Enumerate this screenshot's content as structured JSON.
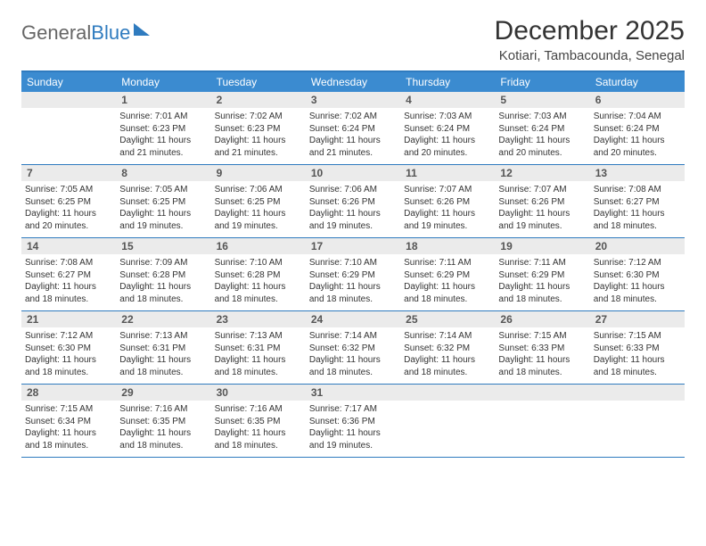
{
  "logo": {
    "word1": "General",
    "word2": "Blue"
  },
  "title": "December 2025",
  "location": "Kotiari, Tambacounda, Senegal",
  "day_names": [
    "Sunday",
    "Monday",
    "Tuesday",
    "Wednesday",
    "Thursday",
    "Friday",
    "Saturday"
  ],
  "colors": {
    "header_bg": "#3b8bd0",
    "border": "#2f7bbf",
    "daynum_bg": "#ebebeb",
    "text": "#333333"
  },
  "weeks": [
    [
      {
        "day": "",
        "sunrise": "",
        "sunset": "",
        "daylight": ""
      },
      {
        "day": "1",
        "sunrise": "Sunrise: 7:01 AM",
        "sunset": "Sunset: 6:23 PM",
        "daylight": "Daylight: 11 hours and 21 minutes."
      },
      {
        "day": "2",
        "sunrise": "Sunrise: 7:02 AM",
        "sunset": "Sunset: 6:23 PM",
        "daylight": "Daylight: 11 hours and 21 minutes."
      },
      {
        "day": "3",
        "sunrise": "Sunrise: 7:02 AM",
        "sunset": "Sunset: 6:24 PM",
        "daylight": "Daylight: 11 hours and 21 minutes."
      },
      {
        "day": "4",
        "sunrise": "Sunrise: 7:03 AM",
        "sunset": "Sunset: 6:24 PM",
        "daylight": "Daylight: 11 hours and 20 minutes."
      },
      {
        "day": "5",
        "sunrise": "Sunrise: 7:03 AM",
        "sunset": "Sunset: 6:24 PM",
        "daylight": "Daylight: 11 hours and 20 minutes."
      },
      {
        "day": "6",
        "sunrise": "Sunrise: 7:04 AM",
        "sunset": "Sunset: 6:24 PM",
        "daylight": "Daylight: 11 hours and 20 minutes."
      }
    ],
    [
      {
        "day": "7",
        "sunrise": "Sunrise: 7:05 AM",
        "sunset": "Sunset: 6:25 PM",
        "daylight": "Daylight: 11 hours and 20 minutes."
      },
      {
        "day": "8",
        "sunrise": "Sunrise: 7:05 AM",
        "sunset": "Sunset: 6:25 PM",
        "daylight": "Daylight: 11 hours and 19 minutes."
      },
      {
        "day": "9",
        "sunrise": "Sunrise: 7:06 AM",
        "sunset": "Sunset: 6:25 PM",
        "daylight": "Daylight: 11 hours and 19 minutes."
      },
      {
        "day": "10",
        "sunrise": "Sunrise: 7:06 AM",
        "sunset": "Sunset: 6:26 PM",
        "daylight": "Daylight: 11 hours and 19 minutes."
      },
      {
        "day": "11",
        "sunrise": "Sunrise: 7:07 AM",
        "sunset": "Sunset: 6:26 PM",
        "daylight": "Daylight: 11 hours and 19 minutes."
      },
      {
        "day": "12",
        "sunrise": "Sunrise: 7:07 AM",
        "sunset": "Sunset: 6:26 PM",
        "daylight": "Daylight: 11 hours and 19 minutes."
      },
      {
        "day": "13",
        "sunrise": "Sunrise: 7:08 AM",
        "sunset": "Sunset: 6:27 PM",
        "daylight": "Daylight: 11 hours and 18 minutes."
      }
    ],
    [
      {
        "day": "14",
        "sunrise": "Sunrise: 7:08 AM",
        "sunset": "Sunset: 6:27 PM",
        "daylight": "Daylight: 11 hours and 18 minutes."
      },
      {
        "day": "15",
        "sunrise": "Sunrise: 7:09 AM",
        "sunset": "Sunset: 6:28 PM",
        "daylight": "Daylight: 11 hours and 18 minutes."
      },
      {
        "day": "16",
        "sunrise": "Sunrise: 7:10 AM",
        "sunset": "Sunset: 6:28 PM",
        "daylight": "Daylight: 11 hours and 18 minutes."
      },
      {
        "day": "17",
        "sunrise": "Sunrise: 7:10 AM",
        "sunset": "Sunset: 6:29 PM",
        "daylight": "Daylight: 11 hours and 18 minutes."
      },
      {
        "day": "18",
        "sunrise": "Sunrise: 7:11 AM",
        "sunset": "Sunset: 6:29 PM",
        "daylight": "Daylight: 11 hours and 18 minutes."
      },
      {
        "day": "19",
        "sunrise": "Sunrise: 7:11 AM",
        "sunset": "Sunset: 6:29 PM",
        "daylight": "Daylight: 11 hours and 18 minutes."
      },
      {
        "day": "20",
        "sunrise": "Sunrise: 7:12 AM",
        "sunset": "Sunset: 6:30 PM",
        "daylight": "Daylight: 11 hours and 18 minutes."
      }
    ],
    [
      {
        "day": "21",
        "sunrise": "Sunrise: 7:12 AM",
        "sunset": "Sunset: 6:30 PM",
        "daylight": "Daylight: 11 hours and 18 minutes."
      },
      {
        "day": "22",
        "sunrise": "Sunrise: 7:13 AM",
        "sunset": "Sunset: 6:31 PM",
        "daylight": "Daylight: 11 hours and 18 minutes."
      },
      {
        "day": "23",
        "sunrise": "Sunrise: 7:13 AM",
        "sunset": "Sunset: 6:31 PM",
        "daylight": "Daylight: 11 hours and 18 minutes."
      },
      {
        "day": "24",
        "sunrise": "Sunrise: 7:14 AM",
        "sunset": "Sunset: 6:32 PM",
        "daylight": "Daylight: 11 hours and 18 minutes."
      },
      {
        "day": "25",
        "sunrise": "Sunrise: 7:14 AM",
        "sunset": "Sunset: 6:32 PM",
        "daylight": "Daylight: 11 hours and 18 minutes."
      },
      {
        "day": "26",
        "sunrise": "Sunrise: 7:15 AM",
        "sunset": "Sunset: 6:33 PM",
        "daylight": "Daylight: 11 hours and 18 minutes."
      },
      {
        "day": "27",
        "sunrise": "Sunrise: 7:15 AM",
        "sunset": "Sunset: 6:33 PM",
        "daylight": "Daylight: 11 hours and 18 minutes."
      }
    ],
    [
      {
        "day": "28",
        "sunrise": "Sunrise: 7:15 AM",
        "sunset": "Sunset: 6:34 PM",
        "daylight": "Daylight: 11 hours and 18 minutes."
      },
      {
        "day": "29",
        "sunrise": "Sunrise: 7:16 AM",
        "sunset": "Sunset: 6:35 PM",
        "daylight": "Daylight: 11 hours and 18 minutes."
      },
      {
        "day": "30",
        "sunrise": "Sunrise: 7:16 AM",
        "sunset": "Sunset: 6:35 PM",
        "daylight": "Daylight: 11 hours and 18 minutes."
      },
      {
        "day": "31",
        "sunrise": "Sunrise: 7:17 AM",
        "sunset": "Sunset: 6:36 PM",
        "daylight": "Daylight: 11 hours and 19 minutes."
      },
      {
        "day": "",
        "sunrise": "",
        "sunset": "",
        "daylight": ""
      },
      {
        "day": "",
        "sunrise": "",
        "sunset": "",
        "daylight": ""
      },
      {
        "day": "",
        "sunrise": "",
        "sunset": "",
        "daylight": ""
      }
    ]
  ]
}
